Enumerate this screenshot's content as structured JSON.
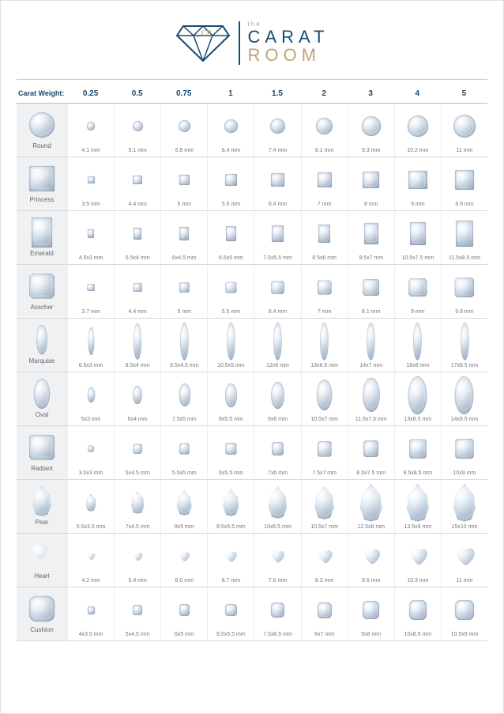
{
  "brand": {
    "the": "the",
    "line1": "CARAT",
    "line2": "ROOM"
  },
  "headerLabel": "Carat Weight:",
  "weights": [
    "0.25",
    "0.5",
    "0.75",
    "1",
    "1.5",
    "2",
    "3",
    "4",
    "5"
  ],
  "colors": {
    "navy": "#1a4a6e",
    "gold": "#bfa373",
    "grid": "#d8d8d8",
    "bg": "#ffffff",
    "shapeBg": "#f0f1f3"
  },
  "baseUnit": 2.6,
  "shapes": [
    {
      "key": "round",
      "name": "Round",
      "aspect": 1,
      "cls": "round",
      "sizes": [
        "4.1 mm",
        "5.1 mm",
        "5.8 mm",
        "6.4 mm",
        "7.4 mm",
        "8.1 mm",
        "9.3 mm",
        "10.2 mm",
        "11 mm"
      ],
      "w": [
        4.1,
        5.1,
        5.8,
        6.4,
        7.4,
        8.1,
        9.3,
        10.2,
        11
      ]
    },
    {
      "key": "princess",
      "name": "Princess",
      "aspect": 1,
      "cls": "princess",
      "sizes": [
        "3.5 mm",
        "4.4 mm",
        "5 mm",
        "5.5 mm",
        "6.4 mm",
        "7 mm",
        "8 mm",
        "9 mm",
        "9.5 mm"
      ],
      "w": [
        3.5,
        4.4,
        5,
        5.5,
        6.4,
        7,
        8,
        9,
        9.5
      ]
    },
    {
      "key": "emerald",
      "name": "Emerald",
      "aspect": 1.5,
      "cls": "emerald",
      "sizes": [
        "4.5x3 mm",
        "5.5x4 mm",
        "6x4.5 mm",
        "6.5x5 mm",
        "7.5x5.5 mm",
        "8.5x6 mm",
        "9.5x7 mm",
        "10.5x7.5 mm",
        "11.5x8.5 mm"
      ],
      "w": [
        3,
        4,
        4.5,
        5,
        5.5,
        6,
        7,
        7.5,
        8.5
      ]
    },
    {
      "key": "asscher",
      "name": "Asscher",
      "aspect": 1,
      "cls": "asscher",
      "sizes": [
        "3.7 mm",
        "4.4 mm",
        "5 mm",
        "5.5 mm",
        "6.4 mm",
        "7 mm",
        "8.1 mm",
        "9 mm",
        "9.6 mm"
      ],
      "w": [
        3.7,
        4.4,
        5,
        5.5,
        6.4,
        7,
        8.1,
        9,
        9.6
      ]
    },
    {
      "key": "marquise",
      "name": "Marquise",
      "aspect": 2.1,
      "cls": "marquise",
      "sizes": [
        "6.5x3 mm",
        "8.5x4 mm",
        "9.5x4.5 mm",
        "10.5x5 mm",
        "12x6 mm",
        "13x6.5 mm",
        "14x7 mm",
        "16x8 mm",
        "17x8.5 mm"
      ],
      "w": [
        6.5,
        8.5,
        9.5,
        10.5,
        12,
        13,
        14,
        16,
        17
      ]
    },
    {
      "key": "oval",
      "name": "Oval",
      "aspect": 1.45,
      "cls": "oval",
      "sizes": [
        "5x3 mm",
        "6x4 mm",
        "7.5x5 mm",
        "8x5.5 mm",
        "9x6 mm",
        "10.5x7 mm",
        "11.5x7.5 mm",
        "13x8.5 mm",
        "14x9.5 mm"
      ],
      "w": [
        5,
        6,
        7.5,
        8,
        9,
        10.5,
        11.5,
        13,
        14
      ]
    },
    {
      "key": "radiant",
      "name": "Radiant",
      "aspect": 1.1,
      "cls": "radiant",
      "sizes": [
        "3.5x3 mm",
        "5x4.5 mm",
        "5.5x5 mm",
        "6x5.5 mm",
        "7x6 mm",
        "7.5x7 mm",
        "8.5x7.5 mm",
        "9.5x8.5 mm",
        "10x9 mm"
      ],
      "w": [
        3,
        4.5,
        5,
        5.5,
        6,
        7,
        7.5,
        8.5,
        9
      ]
    },
    {
      "key": "pear",
      "name": "Pear",
      "aspect": 1.55,
      "cls": "pear",
      "sizes": [
        "5.5x3.5 mm",
        "7x4.5 mm",
        "8x5 mm",
        "8.5x5.5 mm",
        "10x6.5 mm",
        "10.5x7 mm",
        "12.5x8 mm",
        "13.5x9 mm",
        "15x10 mm"
      ],
      "w": [
        5.5,
        7,
        8,
        8.5,
        10,
        10.5,
        12.5,
        13.5,
        15
      ]
    },
    {
      "key": "heart",
      "name": "Heart",
      "aspect": 1,
      "cls": "heart",
      "sizes": [
        "4.2 mm",
        "5.4 mm",
        "6.0 mm",
        "6.7 mm",
        "7.6 mm",
        "8.3 mm",
        "9.5 mm",
        "10.3 mm",
        "11 mm"
      ],
      "w": [
        4.2,
        5.4,
        6,
        6.7,
        7.6,
        8.3,
        9.5,
        10.3,
        11
      ]
    },
    {
      "key": "cushion",
      "name": "Cushion",
      "aspect": 1.1,
      "cls": "cushion",
      "sizes": [
        "4x3.5 mm",
        "5x4.5 mm",
        "6x5 mm",
        "6.5x5.5 mm",
        "7.5x6.5 mm",
        "8x7 mm",
        "9x8 mm",
        "10x8.5 mm",
        "10.5x9 mm"
      ],
      "w": [
        3.5,
        4.5,
        5,
        5.5,
        6.5,
        7,
        8,
        8.5,
        9
      ]
    }
  ]
}
